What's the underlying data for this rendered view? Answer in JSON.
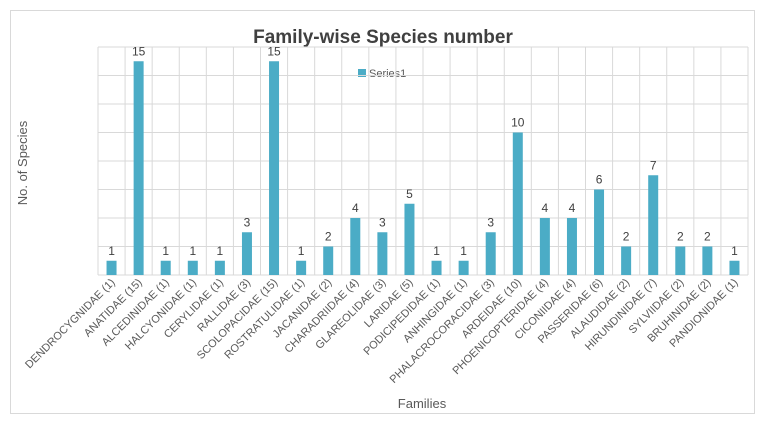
{
  "chart_data": {
    "type": "bar",
    "title": "Family-wise Species number",
    "xlabel": "Families",
    "ylabel": "No. of Species",
    "ylim": [
      0,
      16
    ],
    "grid": true,
    "legend_position": "top-center",
    "series": [
      {
        "name": "Series1",
        "color": "#4bacc6",
        "values": [
          1,
          15,
          1,
          1,
          1,
          3,
          15,
          1,
          2,
          4,
          3,
          5,
          1,
          1,
          3,
          10,
          4,
          4,
          6,
          2,
          7,
          2,
          2,
          1
        ]
      }
    ],
    "categories": [
      "DENDROCYGNIDAE (1)",
      "ANATIDAE (15)",
      "ALCEDINIDAE (1)",
      "HALCYONIDAE (1)",
      "CERYLIDAE (1)",
      "RALLIDAE (3)",
      "SCOLOPACIDAE (15)",
      "ROSTRATULIDAE (1)",
      "JACANIDAE (2)",
      "CHARADRIIDAE (4)",
      "GLAREOLIDAE (3)",
      "LARIDAE (5)",
      "PODICIPEDIDAE (1)",
      "ANHINGIDAE (1)",
      "PHALACROCORACIDAE (3)",
      "ARDEIDAE (10)",
      "PHOENICOPTERIDAE (4)",
      "CICONIIDAE (4)",
      "PASSERIDAE (6)",
      "ALAUDIDAE (2)",
      "HIRUNDINIDAE (7)",
      "SYLVIIDAE (2)",
      "BRUHINIDAE (2)",
      "PANDIONIDAE (1)"
    ]
  }
}
